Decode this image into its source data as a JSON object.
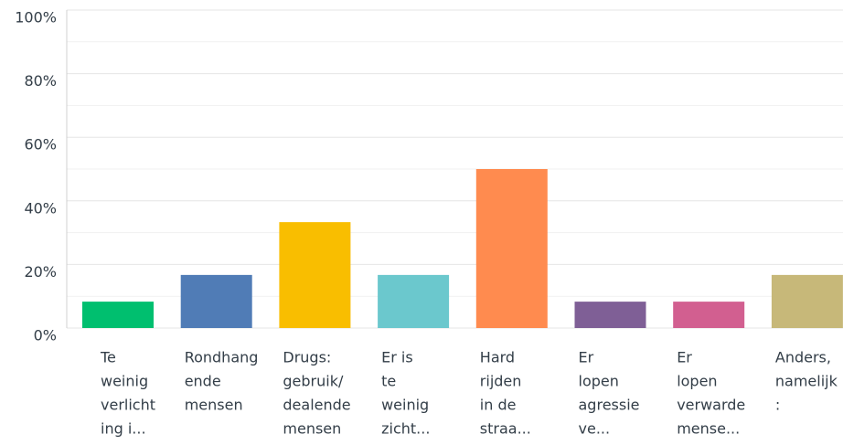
{
  "chart_data": {
    "type": "bar",
    "categories": [
      [
        "Te",
        "weinig",
        "verlicht",
        "ing i..."
      ],
      [
        "Rondhang",
        "ende",
        "mensen"
      ],
      [
        "Drugs:",
        "gebruik/",
        "dealende",
        "mensen"
      ],
      [
        "Er is",
        "te",
        "weinig",
        "zicht..."
      ],
      [
        "Hard",
        "rijden",
        "in de",
        "straa..."
      ],
      [
        "Er",
        "lopen",
        "agressie",
        "ve..."
      ],
      [
        "Er",
        "lopen",
        "verwarde",
        "mense..."
      ],
      [
        "Anders,",
        "namelijk",
        ":"
      ]
    ],
    "values": [
      8.3,
      16.7,
      33.3,
      16.7,
      50,
      8.3,
      8.3,
      16.7
    ],
    "colors": [
      "#00bf6f",
      "#507cb6",
      "#f9be00",
      "#6bc8cd",
      "#ff8b4f",
      "#7f5f96",
      "#d25f90",
      "#c7b879"
    ],
    "ylim": [
      0,
      100
    ],
    "yticks": [
      {
        "value": 0,
        "label": "0%"
      },
      {
        "value": 20,
        "label": "20%"
      },
      {
        "value": 40,
        "label": "40%"
      },
      {
        "value": 60,
        "label": "60%"
      },
      {
        "value": 80,
        "label": "80%"
      },
      {
        "value": 100,
        "label": "100%"
      }
    ],
    "minor_yticks": [
      10,
      30,
      50,
      70,
      90
    ],
    "grid": true
  }
}
